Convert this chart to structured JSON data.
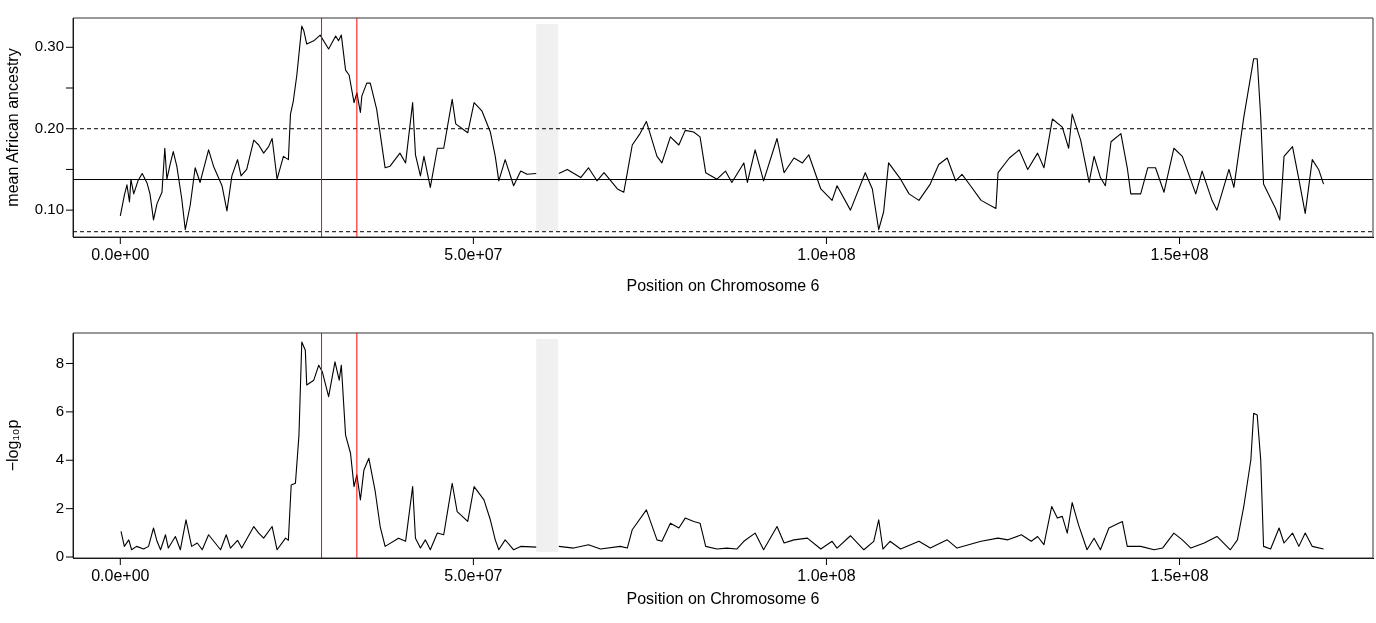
{
  "chart_data": [
    {
      "type": "line",
      "xlabel": "Position on Chromosome 6",
      "ylabel": "mean African ancestry",
      "xlim": [
        -6700000.0,
        177400000.0
      ],
      "ylim": [
        0.067,
        0.336
      ],
      "xticks": [
        {
          "value": 0,
          "label": "0.0e+00"
        },
        {
          "value": 50000000.0,
          "label": "5.0e+07"
        },
        {
          "value": 100000000.0,
          "label": "1.0e+08"
        },
        {
          "value": 150000000.0,
          "label": "1.5e+08"
        }
      ],
      "yticks": [
        {
          "value": 0.1,
          "label": "0.10"
        },
        {
          "value": 0.15,
          "label": null
        },
        {
          "value": 0.2,
          "label": "0.20"
        },
        {
          "value": 0.25,
          "label": null
        },
        {
          "value": 0.3,
          "label": "0.30"
        }
      ],
      "ref_lines": [
        {
          "axis": "y",
          "value": 0.1376,
          "color": "#000000",
          "line_style": "solid"
        },
        {
          "axis": "y",
          "value": 0.2,
          "color": "#000000",
          "line_style": "dashed"
        },
        {
          "axis": "y",
          "value": 0.0735,
          "color": "#000000",
          "line_style": "dashed"
        },
        {
          "axis": "x",
          "value": 28500000.0,
          "color": "#ff0000",
          "line_style": "solid"
        },
        {
          "axis": "x",
          "value": 33500000.0,
          "color": "#ff0000",
          "line_style": "solid"
        }
      ],
      "bands": [
        {
          "axis": "x",
          "from": 58900000.0,
          "to": 62000000.0,
          "color": "#f0f0f0"
        }
      ],
      "series": [
        {
          "color": "#000000",
          "x": [
            0,
            570000.0,
            940000.0,
            1300000.0,
            1500000.0,
            1900000.0,
            2500000.0,
            3100000.0,
            3800000.0,
            4200000.0,
            4700000.0,
            5200000.0,
            5900000.0,
            6300000.0,
            6600000.0,
            7100000.0,
            7500000.0,
            8000000.0,
            8700000.0,
            9200000.0,
            9900000.0,
            10600000.0,
            11300000.0,
            12500000.0,
            13200000.0,
            14400000.0,
            15100000.0,
            15800000.0,
            16600000.0,
            17100000.0,
            17900000.0,
            18900000.0,
            19600000.0,
            20300000.0,
            21000000.0,
            21500000.0,
            22200000.0,
            23100000.0,
            23800000.0,
            24100000.0,
            24500000.0,
            25000000.0,
            25700000.0,
            26000000.0,
            26400000.0,
            27400000.0,
            28300000.0,
            29500000.0,
            30500000.0,
            30900000.0,
            31300000.0,
            31900000.0,
            32400000.0,
            33100000.0,
            33500000.0,
            34000000.0,
            34200000.0,
            34900000.0,
            35400000.0,
            36300000.0,
            37500000.0,
            38200000.0,
            39600000.0,
            40400000.0,
            41400000.0,
            41800000.0,
            42500000.0,
            43000000.0,
            43900000.0,
            44900000.0,
            45800000.0,
            47000000.0,
            47500000.0,
            49200000.0,
            50100000.0,
            51200000.0,
            52400000.0,
            53100000.0,
            53600000.0,
            54500000.0,
            55700000.0,
            56700000.0,
            57600000.0,
            58900000.0,
            60500000.0,
            62100000.0,
            63300000.0,
            65200000.0,
            66300000.0,
            67500000.0,
            68500000.0,
            70400000.0,
            71300000.0,
            71800000.0,
            72500000.0,
            73600000.0,
            74500000.0,
            76000000.0,
            76700000.0,
            77900000.0,
            79100000.0,
            80000000.0,
            81200000.0,
            82100000.0,
            82900000.0,
            84500000.0,
            85700000.0,
            86600000.0,
            88300000.0,
            88800000.0,
            89900000.0,
            91100000.0,
            93000000.0,
            94000000.0,
            95400000.0,
            96600000.0,
            97500000.0,
            99200000.0,
            100800000.0,
            101500000.0,
            103400000.0,
            105500000.0,
            106500000.0,
            107400000.0,
            108100000.0,
            108800000.0,
            110500000.0,
            111700000.0,
            113100000.0,
            114700000.0,
            115900000.0,
            117100000.0,
            118300000.0,
            119200000.0,
            120400000.0,
            121900000.0,
            124000000.0,
            124300000.0,
            125900000.0,
            127300000.0,
            128500000.0,
            129900000.0,
            130800000.0,
            132000000.0,
            133400000.0,
            134300000.0,
            134800000.0,
            136000000.0,
            137200000.0,
            137900000.0,
            138800000.0,
            139500000.0,
            140300000.0,
            141700000.0,
            142600000.0,
            143100000.0,
            144500000.0,
            145500000.0,
            146600000.0,
            147800000.0,
            149200000.0,
            150400000.0,
            152300000.0,
            153200000.0,
            154600000.0,
            155300000.0,
            157000000.0,
            157700000.0,
            159100000.0,
            160500000.0,
            161000000.0,
            161500000.0,
            161900000.0,
            163600000.0,
            164200000.0,
            164800000.0,
            166000000.0,
            166900000.0,
            167800000.0,
            168800000.0,
            169700000.0,
            170400000.0
          ],
          "values": [
            0.093,
            0.118,
            0.131,
            0.11,
            0.138,
            0.12,
            0.136,
            0.145,
            0.133,
            0.12,
            0.088,
            0.108,
            0.122,
            0.176,
            0.138,
            0.158,
            0.172,
            0.154,
            0.114,
            0.076,
            0.106,
            0.152,
            0.134,
            0.174,
            0.154,
            0.13,
            0.099,
            0.142,
            0.162,
            0.142,
            0.15,
            0.186,
            0.18,
            0.17,
            0.178,
            0.188,
            0.138,
            0.166,
            0.162,
            0.218,
            0.234,
            0.266,
            0.326,
            0.32,
            0.304,
            0.308,
            0.315,
            0.298,
            0.314,
            0.308,
            0.315,
            0.272,
            0.266,
            0.232,
            0.244,
            0.22,
            0.24,
            0.256,
            0.256,
            0.224,
            0.152,
            0.154,
            0.17,
            0.158,
            0.232,
            0.168,
            0.142,
            0.166,
            0.128,
            0.176,
            0.176,
            0.236,
            0.206,
            0.195,
            0.232,
            0.222,
            0.196,
            0.166,
            0.136,
            0.162,
            0.13,
            0.148,
            0.144,
            0.145,
            null,
            0.145,
            0.15,
            0.14,
            0.152,
            0.136,
            0.146,
            0.126,
            0.122,
            0.146,
            0.18,
            0.194,
            0.209,
            0.166,
            0.158,
            0.19,
            0.18,
            0.198,
            0.196,
            0.19,
            0.146,
            0.138,
            0.148,
            0.134,
            0.158,
            0.134,
            0.174,
            0.136,
            0.188,
            0.146,
            0.164,
            0.158,
            0.168,
            0.126,
            0.112,
            0.13,
            0.1,
            0.146,
            0.126,
            0.076,
            0.098,
            0.158,
            0.138,
            0.12,
            0.112,
            0.132,
            0.156,
            0.164,
            0.136,
            0.144,
            0.13,
            0.112,
            0.102,
            0.146,
            0.164,
            0.174,
            0.15,
            0.17,
            0.152,
            0.212,
            0.202,
            0.176,
            0.218,
            0.186,
            0.134,
            0.166,
            0.14,
            0.13,
            0.184,
            0.194,
            0.152,
            0.12,
            0.12,
            0.152,
            0.152,
            0.122,
            0.176,
            0.166,
            0.12,
            0.148,
            0.112,
            0.1,
            0.15,
            0.128,
            0.214,
            0.286,
            0.286,
            0.214,
            0.132,
            0.102,
            0.088,
            0.166,
            0.178,
            0.138,
            0.096,
            0.162,
            0.15,
            0.132
          ]
        }
      ]
    },
    {
      "type": "line",
      "xlabel": "Position on Chromosome 6",
      "ylabel": "−log₁₀p",
      "xlim": [
        -6700000.0,
        177400000.0
      ],
      "ylim": [
        -0.04,
        9.26
      ],
      "xticks": [
        {
          "value": 0,
          "label": "0.0e+00"
        },
        {
          "value": 50000000.0,
          "label": "5.0e+07"
        },
        {
          "value": 100000000.0,
          "label": "1.0e+08"
        },
        {
          "value": 150000000.0,
          "label": "1.5e+08"
        }
      ],
      "yticks": [
        0,
        2,
        4,
        6,
        8
      ],
      "ref_lines": [
        {
          "axis": "x",
          "value": 28500000.0,
          "color": "#ff0000",
          "line_style": "solid"
        },
        {
          "axis": "x",
          "value": 33500000.0,
          "color": "#ff0000",
          "line_style": "solid"
        }
      ],
      "bands": [
        {
          "axis": "x",
          "from": 58900000.0,
          "to": 62000000.0,
          "color": "#f0f0f0"
        }
      ],
      "series": [
        {
          "color": "#000000",
          "x": [
            100000.0,
            570000.0,
            1200000.0,
            1600000.0,
            2300000.0,
            3300000.0,
            4000000.0,
            4700000.0,
            5200000.0,
            5700000.0,
            6400000.0,
            6800000.0,
            7800000.0,
            8500000.0,
            9300000.0,
            10100000.0,
            10900000.0,
            11600000.0,
            12500000.0,
            14200000.0,
            15000000.0,
            15600000.0,
            16600000.0,
            17200000.0,
            18900000.0,
            19600000.0,
            20300000.0,
            21500000.0,
            22200000.0,
            23400000.0,
            23800000.0,
            24200000.0,
            24800000.0,
            25300000.0,
            25700000.0,
            26200000.0,
            26400000.0,
            27400000.0,
            28100000.0,
            28600000.0,
            29500000.0,
            30400000.0,
            31000000.0,
            31300000.0,
            31900000.0,
            32600000.0,
            33100000.0,
            33500000.0,
            34000000.0,
            34500000.0,
            35200000.0,
            36100000.0,
            36800000.0,
            37500000.0,
            39400000.0,
            40400000.0,
            41400000.0,
            41800000.0,
            42500000.0,
            43200000.0,
            43900000.0,
            44900000.0,
            45800000.0,
            47000000.0,
            47700000.0,
            49200000.0,
            50100000.0,
            51500000.0,
            52400000.0,
            53100000.0,
            53600000.0,
            54500000.0,
            55700000.0,
            56700000.0,
            58900000.0,
            60500000.0,
            62100000.0,
            64200000.0,
            66300000.0,
            68000000.0,
            70800000.0,
            71800000.0,
            72500000.0,
            74500000.0,
            76000000.0,
            76700000.0,
            77900000.0,
            79100000.0,
            80000000.0,
            81200000.0,
            82100000.0,
            82900000.0,
            84500000.0,
            85900000.0,
            87300000.0,
            88300000.0,
            89900000.0,
            91100000.0,
            93000000.0,
            94000000.0,
            95400000.0,
            97300000.0,
            99200000.0,
            100800000.0,
            101500000.0,
            103400000.0,
            105300000.0,
            106700000.0,
            107400000.0,
            108000000.0,
            109000000.0,
            110500000.0,
            113100000.0,
            114700000.0,
            117100000.0,
            118500000.0,
            121900000.0,
            124300000.0,
            125700000.0,
            127600000.0,
            129000000.0,
            129900000.0,
            130800000.0,
            131900000.0,
            132700000.0,
            133400000.0,
            134100000.0,
            134800000.0,
            135700000.0,
            136900000.0,
            137900000.0,
            138800000.0,
            140000000.0,
            141900000.0,
            142600000.0,
            144500000.0,
            146400000.0,
            147600000.0,
            149200000.0,
            150400000.0,
            151600000.0,
            153500000.0,
            155300000.0,
            157200000.0,
            158200000.0,
            159100000.0,
            160100000.0,
            160500000.0,
            161000000.0,
            161500000.0,
            161900000.0,
            162900000.0,
            164100000.0,
            164800000.0,
            166000000.0,
            166900000.0,
            167800000.0,
            168800000.0,
            170400000.0
          ],
          "values": [
            1.06,
            0.44,
            0.71,
            0.3,
            0.44,
            0.33,
            0.44,
            1.2,
            0.65,
            0.3,
            0.92,
            0.37,
            0.85,
            0.3,
            1.54,
            0.44,
            0.58,
            0.3,
            0.92,
            0.3,
            0.92,
            0.37,
            0.69,
            0.37,
            1.26,
            0.99,
            0.78,
            1.26,
            0.3,
            0.78,
            0.69,
            2.98,
            3.05,
            5.04,
            8.89,
            8.55,
            7.11,
            7.31,
            7.93,
            7.66,
            6.63,
            8.07,
            7.31,
            7.93,
            5.04,
            4.29,
            2.91,
            3.4,
            2.36,
            3.6,
            4.08,
            2.71,
            1.26,
            0.44,
            0.78,
            0.65,
            2.91,
            0.78,
            0.37,
            0.71,
            0.3,
            0.99,
            0.92,
            3.05,
            1.88,
            1.47,
            2.91,
            2.36,
            1.54,
            0.71,
            0.3,
            0.71,
            0.3,
            0.44,
            0.41,
            null,
            0.44,
            0.37,
            0.51,
            0.33,
            0.44,
            0.37,
            1.13,
            1.95,
            0.71,
            0.65,
            1.4,
            1.2,
            1.61,
            1.47,
            1.4,
            0.44,
            0.33,
            0.37,
            0.33,
            0.65,
            0.99,
            0.3,
            1.26,
            0.58,
            0.71,
            0.78,
            0.33,
            0.65,
            0.37,
            0.88,
            0.3,
            0.65,
            1.54,
            0.33,
            0.65,
            0.33,
            0.65,
            0.37,
            0.71,
            0.37,
            0.65,
            0.78,
            0.71,
            0.92,
            0.65,
            0.85,
            0.51,
            2.09,
            1.61,
            1.68,
            0.99,
            2.25,
            1.33,
            0.3,
            0.78,
            0.3,
            1.2,
            1.47,
            0.44,
            0.44,
            0.3,
            0.37,
            0.99,
            0.71,
            0.37,
            0.58,
            0.85,
            0.3,
            0.71,
            2.09,
            4.01,
            5.94,
            5.87,
            4.01,
            0.44,
            0.33,
            1.2,
            0.58,
            0.99,
            0.44,
            0.99,
            0.44,
            0.33
          ]
        }
      ]
    }
  ]
}
